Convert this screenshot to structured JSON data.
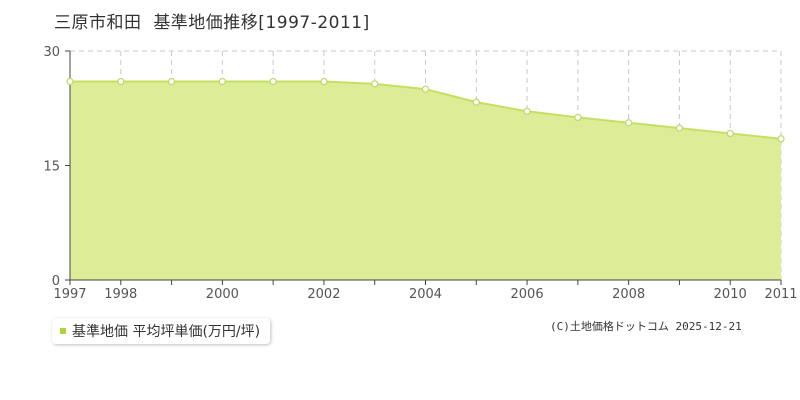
{
  "header": {
    "region": "三原市和田",
    "title": "基準地価推移[1997-2011]"
  },
  "legend": {
    "label": "基準地価 平均坪単価(万円/坪)"
  },
  "footer": {
    "copyright": "(C)土地価格ドットコム 2025-12-21"
  },
  "colors": {
    "fill": "#dcec97",
    "line": "#c4e060",
    "point_fill": "#ffffff",
    "point_stroke": "#bcd968",
    "grid": "#c8c8c8",
    "axis": "#444444",
    "legend_swatch": "#a8d63c"
  },
  "chart_data": {
    "type": "area",
    "title": "基準地価推移[1997-2011]",
    "xlabel": "",
    "ylabel": "",
    "x": [
      1997,
      1998,
      1999,
      2000,
      2001,
      2002,
      2003,
      2004,
      2005,
      2006,
      2007,
      2008,
      2009,
      2010,
      2011
    ],
    "x_tick_labels": [
      "1997",
      "1998",
      "2000",
      "2002",
      "2004",
      "2006",
      "2008",
      "2010",
      "2011"
    ],
    "y_ticks": [
      0,
      15,
      30
    ],
    "ylim": [
      0,
      30
    ],
    "xlim": [
      1997,
      2011
    ],
    "grid": true,
    "legend_position": "bottom-left",
    "series": [
      {
        "name": "基準地価 平均坪単価(万円/坪)",
        "values": [
          26.0,
          26.0,
          26.0,
          26.0,
          26.0,
          26.0,
          25.7,
          25.0,
          23.3,
          22.1,
          21.3,
          20.6,
          19.9,
          19.2,
          18.5
        ]
      }
    ]
  }
}
